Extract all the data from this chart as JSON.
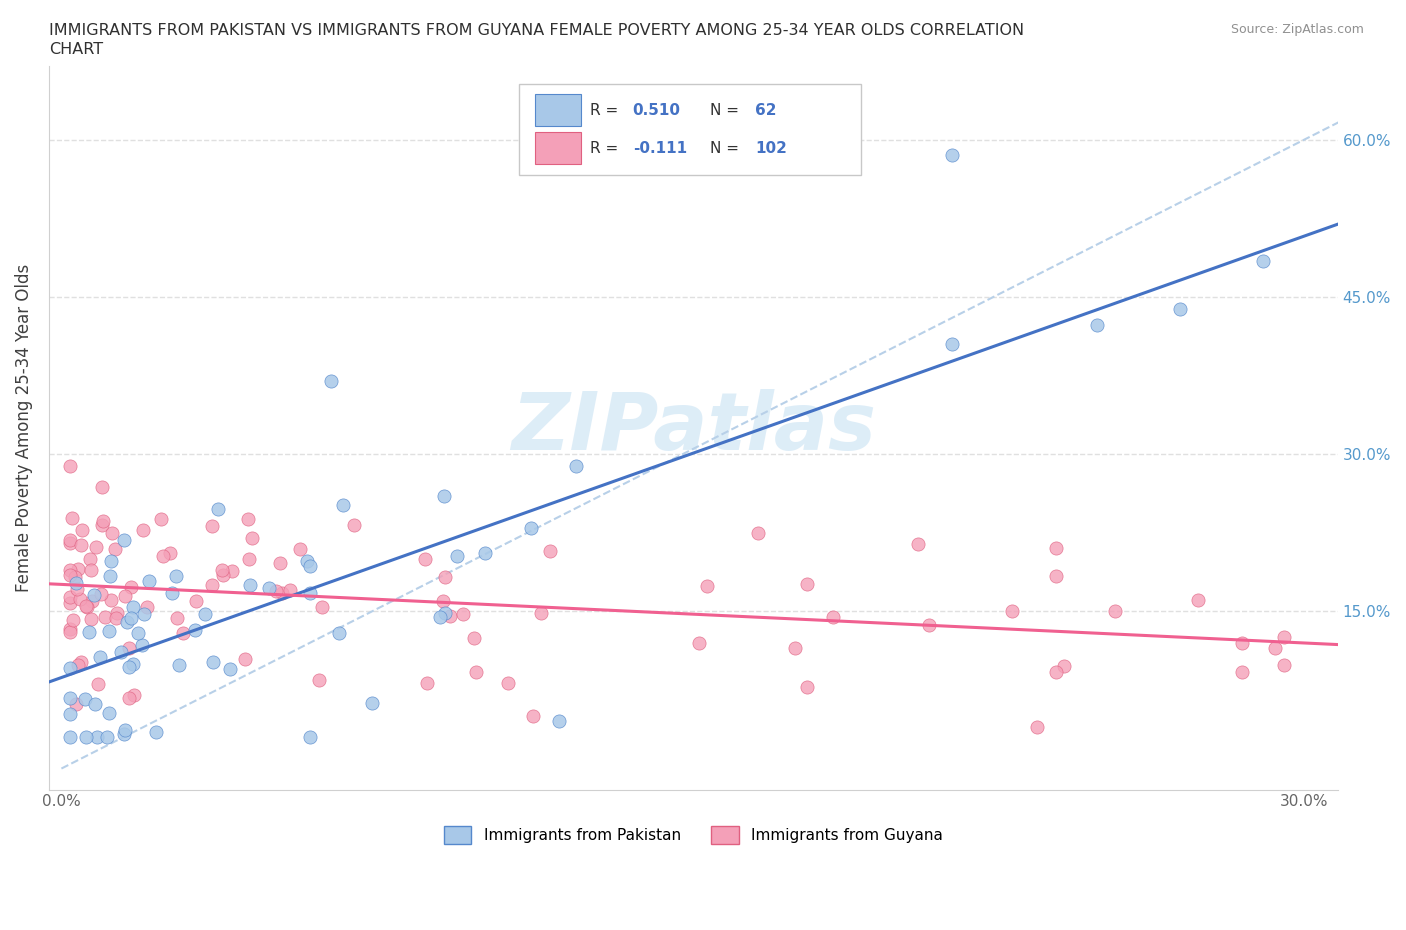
{
  "title_line1": "IMMIGRANTS FROM PAKISTAN VS IMMIGRANTS FROM GUYANA FEMALE POVERTY AMONG 25-34 YEAR OLDS CORRELATION",
  "title_line2": "CHART",
  "source": "Source: ZipAtlas.com",
  "ylabel": "Female Poverty Among 25-34 Year Olds",
  "xlim": [
    0.0,
    0.3
  ],
  "ylim": [
    0.0,
    0.65
  ],
  "watermark": "ZIPatlas",
  "pakistan_color": "#a8c8e8",
  "guyana_color": "#f4a0b8",
  "pakistan_edge_color": "#5588cc",
  "guyana_edge_color": "#e06080",
  "pakistan_line_color": "#4472c4",
  "guyana_line_color": "#f06090",
  "diag_line_color": "#b8d0e8",
  "pakistan_R": 0.51,
  "pakistan_N": 62,
  "guyana_R": -0.111,
  "guyana_N": 102,
  "background_color": "#ffffff",
  "grid_color": "#e0e0e0",
  "right_axis_color": "#5599cc",
  "title_color": "#303030",
  "ylabel_color": "#404040",
  "source_color": "#909090"
}
